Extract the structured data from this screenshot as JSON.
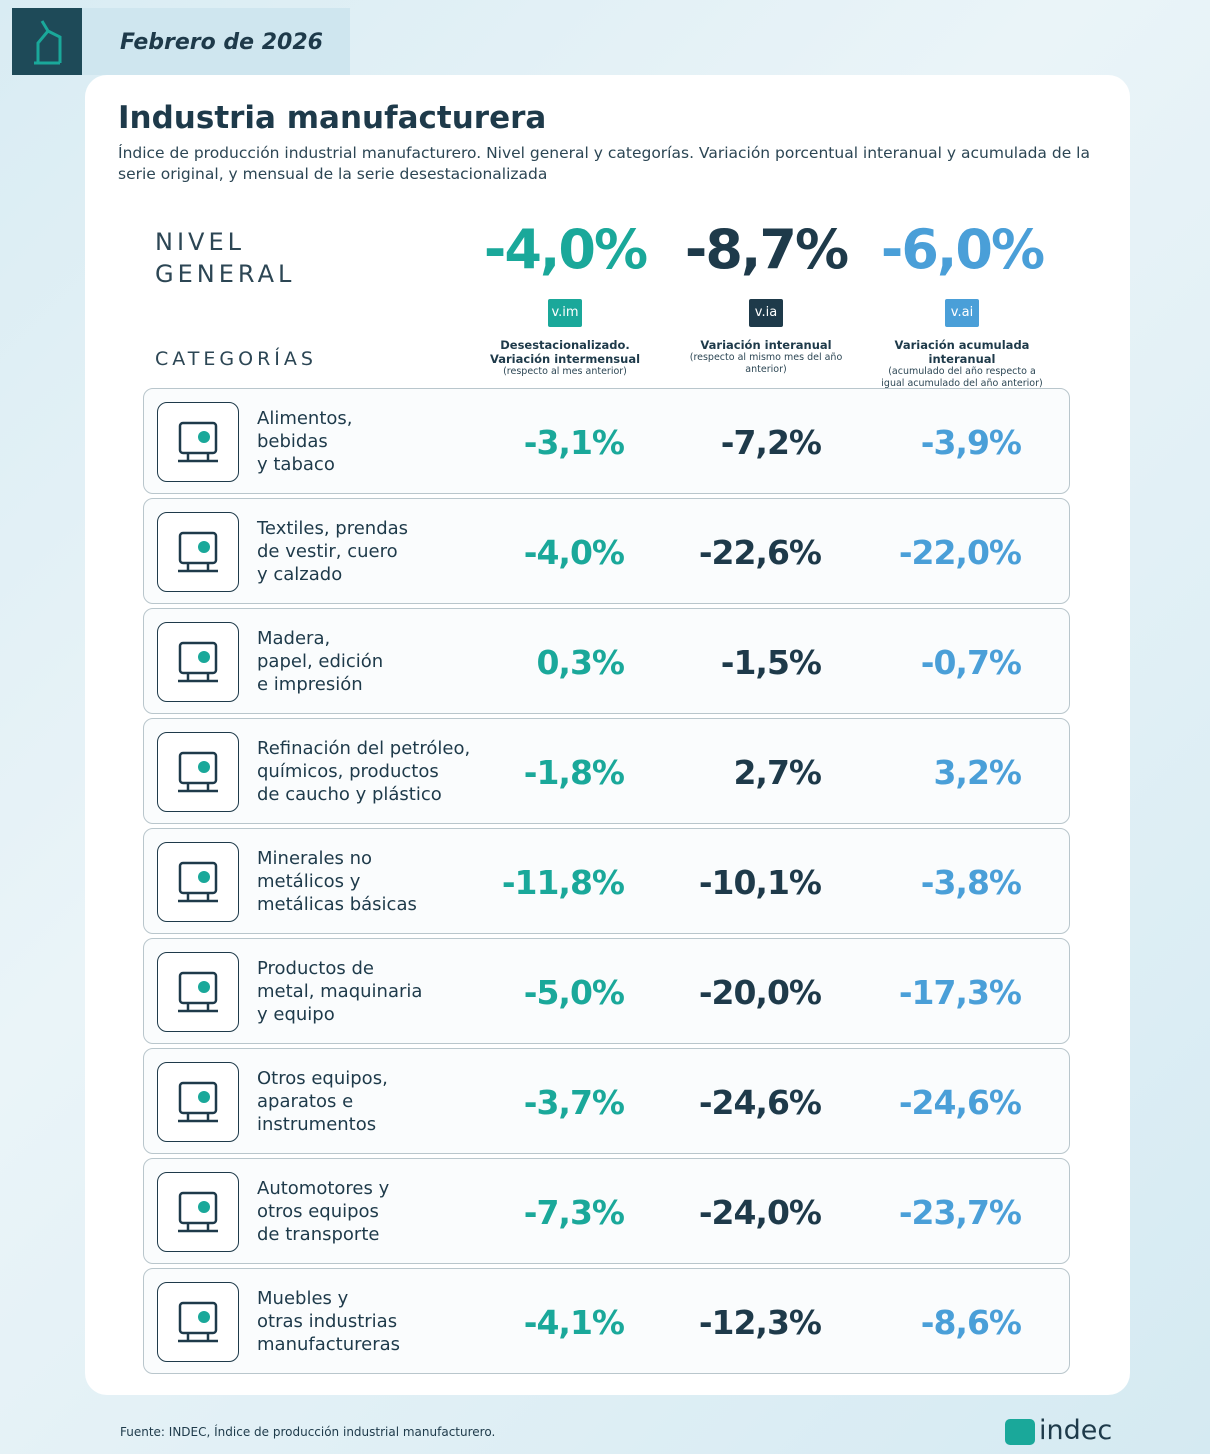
{
  "header": {
    "date": "Febrero de 2026",
    "title": "Industria manufacturera",
    "subtitle": "Índice de producción industrial manufacturero. Nivel general y categorías. Variación porcentual interanual y acumulada de la serie original, y mensual de la serie desestacionalizada"
  },
  "general": {
    "label": [
      "NIVEL",
      "GENERAL"
    ],
    "values": [
      "-4,0%",
      "-8,7%",
      "-6,0%"
    ]
  },
  "columns": [
    {
      "badge": "v.im",
      "title": [
        "Desestacionalizado.",
        "Variación intermensual"
      ],
      "note": "(respecto al mes anterior)"
    },
    {
      "badge": "v.ia",
      "title": [
        "Variación interanual"
      ],
      "note": "(respecto al mismo mes del año anterior)"
    },
    {
      "badge": "v.ai",
      "title": [
        "Variación acumulada interanual"
      ],
      "note": "(acumulado del año respecto a igual acumulado del año anterior)"
    }
  ],
  "categories_label": "CATEGORÍAS",
  "categories": [
    {
      "name": [
        "Alimentos,",
        "bebidas",
        "y tabaco"
      ],
      "values": [
        "-3,1%",
        "-7,2%",
        "-3,9%"
      ]
    },
    {
      "name": [
        "Textiles, prendas",
        "de vestir, cuero",
        "y calzado"
      ],
      "values": [
        "-4,0%",
        "-22,6%",
        "-22,0%"
      ]
    },
    {
      "name": [
        "Madera,",
        "papel, edición",
        "e impresión"
      ],
      "values": [
        "0,3%",
        "-1,5%",
        "-0,7%"
      ]
    },
    {
      "name": [
        "Refinación del petróleo,",
        "químicos, productos",
        "de caucho y plástico"
      ],
      "values": [
        "-1,8%",
        "2,7%",
        "3,2%"
      ]
    },
    {
      "name": [
        "Minerales no",
        "metálicos y",
        "metálicas básicas"
      ],
      "values": [
        "-11,8%",
        "-10,1%",
        "-3,8%"
      ]
    },
    {
      "name": [
        "Productos de",
        "metal, maquinaria",
        "y equipo"
      ],
      "values": [
        "-5,0%",
        "-20,0%",
        "-17,3%"
      ]
    },
    {
      "name": [
        "Otros equipos,",
        "aparatos e",
        "instrumentos"
      ],
      "values": [
        "-3,7%",
        "-24,6%",
        "-24,6%"
      ]
    },
    {
      "name": [
        "Automotores y",
        "otros equipos",
        "de transporte"
      ],
      "values": [
        "-7,3%",
        "-24,0%",
        "-23,7%"
      ]
    },
    {
      "name": [
        "Muebles y",
        "otras industrias",
        "manufactureras"
      ],
      "values": [
        "-4,1%",
        "-12,3%",
        "-8,6%"
      ]
    }
  ],
  "footer": {
    "source": "Fuente: INDEC, Índice de producción industrial manufacturero.",
    "logo": "indec"
  }
}
